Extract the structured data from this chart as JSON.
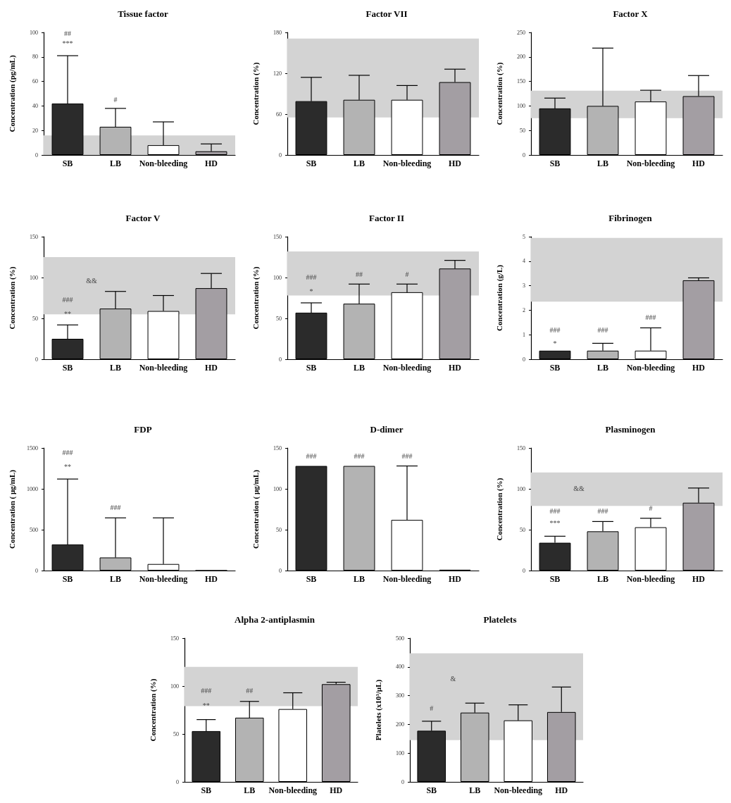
{
  "chart_data": [
    {
      "type": "bar",
      "title": "Tissue factor",
      "ylabel": "Concentration (pg/mL)",
      "categories": [
        "SB",
        "LB",
        "Non-bleeding",
        "HD"
      ],
      "values": [
        42,
        23,
        8,
        3
      ],
      "colors": [
        "#2b2b2b",
        "#b3b3b3",
        "#ffffff",
        "#a39ea3"
      ],
      "errors": [
        [
          42,
          81
        ],
        [
          23,
          38
        ],
        [
          8,
          27
        ],
        [
          3,
          9
        ]
      ],
      "ylim": [
        0,
        100
      ],
      "yticks": [
        0,
        20,
        40,
        60,
        80,
        100
      ],
      "bands": [
        {
          "axis": "y",
          "from": 0,
          "to": 16,
          "color": "#d3d3d3"
        }
      ],
      "annotations": [
        "***",
        "##",
        "#"
      ]
    },
    {
      "type": "bar",
      "title": "Factor VII",
      "ylabel": "Concentration (%)",
      "categories": [
        "SB",
        "LB",
        "Non-bleeding",
        "HD"
      ],
      "values": [
        79,
        81,
        81,
        107
      ],
      "colors": [
        "#2b2b2b",
        "#b3b3b3",
        "#ffffff",
        "#a39ea3"
      ],
      "errors": [
        [
          79,
          114
        ],
        [
          81,
          117
        ],
        [
          81,
          102
        ],
        [
          107,
          126
        ]
      ],
      "ylim": [
        0,
        180
      ],
      "yticks": [
        0,
        60,
        120,
        180
      ],
      "bands": [
        {
          "axis": "y",
          "from": 55,
          "to": 171,
          "color": "#d3d3d3"
        }
      ]
    },
    {
      "type": "bar",
      "title": "Factor X",
      "ylabel": "Concentration (%)",
      "categories": [
        "SB",
        "LB",
        "Non-bleeding",
        "HD"
      ],
      "values": [
        95,
        100,
        109,
        120
      ],
      "colors": [
        "#2b2b2b",
        "#b3b3b3",
        "#ffffff",
        "#a39ea3"
      ],
      "errors": [
        [
          95,
          116
        ],
        [
          100,
          218
        ],
        [
          109,
          132
        ],
        [
          120,
          162
        ]
      ],
      "ylim": [
        0,
        250
      ],
      "yticks": [
        0,
        50,
        100,
        150,
        200,
        250
      ],
      "bands": [
        {
          "axis": "y",
          "from": 75,
          "to": 131,
          "color": "#d3d3d3"
        }
      ]
    },
    {
      "type": "bar",
      "title": "Factor V",
      "ylabel": "Concentration (%)",
      "categories": [
        "SB",
        "LB",
        "Non-bleeding",
        "HD"
      ],
      "values": [
        25,
        62,
        59,
        87
      ],
      "colors": [
        "#2b2b2b",
        "#b3b3b3",
        "#ffffff",
        "#a39ea3"
      ],
      "errors": [
        [
          25,
          42
        ],
        [
          62,
          83
        ],
        [
          59,
          78
        ],
        [
          87,
          105
        ]
      ],
      "ylim": [
        0,
        150
      ],
      "yticks": [
        0,
        50,
        100,
        150
      ],
      "bands": [
        {
          "axis": "y",
          "from": 55,
          "to": 125,
          "color": "#d3d3d3"
        }
      ],
      "annotations": [
        "**",
        "###",
        "&&"
      ]
    },
    {
      "type": "bar",
      "title": "Factor II",
      "ylabel": "Concentration (%)",
      "categories": [
        "SB",
        "LB",
        "Non-bleeding",
        "HD"
      ],
      "values": [
        57,
        68,
        82,
        111
      ],
      "colors": [
        "#2b2b2b",
        "#b3b3b3",
        "#ffffff",
        "#a39ea3"
      ],
      "errors": [
        [
          57,
          69
        ],
        [
          68,
          92
        ],
        [
          82,
          92
        ],
        [
          111,
          121
        ]
      ],
      "ylim": [
        0,
        150
      ],
      "yticks": [
        0,
        50,
        100,
        150
      ],
      "bands": [
        {
          "axis": "y",
          "from": 78,
          "to": 132,
          "color": "#d3d3d3"
        }
      ],
      "annotations": [
        "*",
        "###",
        "##",
        "#"
      ]
    },
    {
      "type": "bar",
      "title": "Fibrinogen",
      "ylabel": "Concentration (g/L)",
      "categories": [
        "SB",
        "LB",
        "Non-bleeding",
        "HD"
      ],
      "values": [
        0.35,
        0.35,
        0.35,
        3.22
      ],
      "colors": [
        "#2b2b2b",
        "#b3b3b3",
        "#ffffff",
        "#a39ea3"
      ],
      "errors": [
        null,
        [
          0.35,
          0.65
        ],
        [
          0.35,
          1.28
        ],
        [
          3.22,
          3.32
        ]
      ],
      "ylim": [
        0,
        5
      ],
      "yticks": [
        0,
        1,
        2,
        3,
        4,
        5
      ],
      "bands": [
        {
          "axis": "y",
          "from": 2.35,
          "to": 4.95,
          "color": "#d3d3d3"
        }
      ],
      "annotations": [
        "*",
        "###",
        "###",
        "###"
      ]
    },
    {
      "type": "bar",
      "title": "FDP",
      "ylabel": "Concentration ( µg/mL)",
      "categories": [
        "SB",
        "LB",
        "Non-bleeding",
        "HD"
      ],
      "values": [
        320,
        160,
        80,
        0
      ],
      "colors": [
        "#2b2b2b",
        "#b3b3b3",
        "#ffffff",
        "#a39ea3"
      ],
      "errors": [
        [
          320,
          1120
        ],
        [
          160,
          645
        ],
        [
          80,
          645
        ],
        null
      ],
      "ylim": [
        0,
        1500
      ],
      "yticks": [
        0,
        500,
        1000,
        1500
      ],
      "annotations": [
        "**",
        "###",
        "###"
      ]
    },
    {
      "type": "bar",
      "title": "D-dimer",
      "ylabel": "Concentration ( µg/mL)",
      "categories": [
        "SB",
        "LB",
        "Non-bleeding",
        "HD"
      ],
      "values": [
        128,
        128,
        62,
        1
      ],
      "colors": [
        "#2b2b2b",
        "#b3b3b3",
        "#ffffff",
        "#a39ea3"
      ],
      "errors": [
        null,
        null,
        [
          62,
          128
        ],
        null
      ],
      "ylim": [
        0,
        150
      ],
      "yticks": [
        0,
        50,
        100,
        150
      ],
      "annotations": [
        "###",
        "###",
        "###"
      ]
    },
    {
      "type": "bar",
      "title": "Plasminogen",
      "ylabel": "Concentration (%)",
      "categories": [
        "SB",
        "LB",
        "Non-bleeding",
        "HD"
      ],
      "values": [
        34,
        48,
        53,
        83
      ],
      "colors": [
        "#2b2b2b",
        "#b3b3b3",
        "#ffffff",
        "#a39ea3"
      ],
      "errors": [
        [
          34,
          42
        ],
        [
          48,
          60
        ],
        [
          53,
          64
        ],
        [
          83,
          101
        ]
      ],
      "ylim": [
        0,
        150
      ],
      "yticks": [
        0,
        50,
        100,
        150
      ],
      "bands": [
        {
          "axis": "y",
          "from": 79,
          "to": 120,
          "color": "#d3d3d3"
        }
      ],
      "annotations": [
        "***",
        "###",
        "###",
        "#",
        "&&"
      ]
    },
    {
      "type": "bar",
      "title": "Alpha 2-antiplasmin",
      "ylabel": "Concentration (%)",
      "categories": [
        "SB",
        "LB",
        "Non-bleeding",
        "HD"
      ],
      "values": [
        53,
        67,
        76,
        102
      ],
      "colors": [
        "#2b2b2b",
        "#b3b3b3",
        "#ffffff",
        "#a39ea3"
      ],
      "errors": [
        [
          53,
          65
        ],
        [
          67,
          84
        ],
        [
          76,
          93
        ],
        [
          102,
          104
        ]
      ],
      "ylim": [
        0,
        150
      ],
      "yticks": [
        0,
        50,
        100,
        150
      ],
      "bands": [
        {
          "axis": "y",
          "from": 79,
          "to": 120,
          "color": "#d3d3d3"
        }
      ],
      "annotations": [
        "**",
        "###",
        "##"
      ]
    },
    {
      "type": "bar",
      "title": "Platelets",
      "ylabel": "Platelets (x10³/µL)",
      "categories": [
        "SB",
        "LB",
        "Non-bleeding",
        "HD"
      ],
      "values": [
        178,
        241,
        214,
        243
      ],
      "colors": [
        "#2b2b2b",
        "#b3b3b3",
        "#ffffff",
        "#a39ea3"
      ],
      "errors": [
        [
          178,
          211
        ],
        [
          241,
          274
        ],
        [
          214,
          268
        ],
        [
          243,
          330
        ]
      ],
      "ylim": [
        0,
        500
      ],
      "yticks": [
        0,
        100,
        200,
        300,
        400,
        500
      ],
      "bands": [
        {
          "axis": "y",
          "from": 145,
          "to": 447,
          "color": "#d3d3d3"
        }
      ],
      "annotations": [
        "#",
        "&"
      ]
    }
  ]
}
